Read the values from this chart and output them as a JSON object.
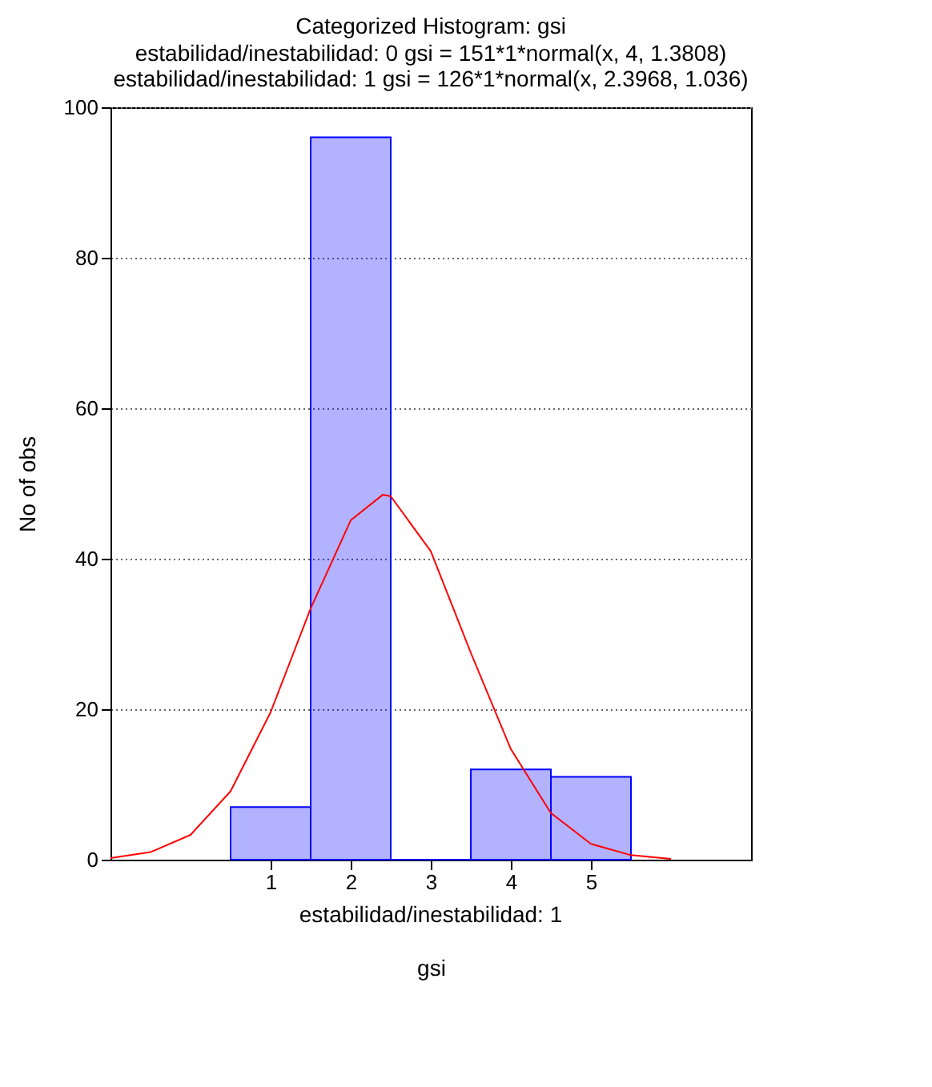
{
  "chart_data": {
    "type": "histogram",
    "title": "Categorized Histogram: gsi",
    "subtitle": [
      "estabilidad/inestabilidad: 0 gsi = 151*1*normal(x, 4, 1.3808)",
      "estabilidad/inestabilidad: 1 gsi = 126*1*normal(x, 2.3968, 1.036)"
    ],
    "xlabel": "gsi",
    "ylabel": "No of obs",
    "annotations": [
      "estabilidad/inestabilidad: 1"
    ],
    "bins": [
      0.5,
      1.5,
      2.5,
      3.5,
      4.5,
      5.5
    ],
    "values": [
      7,
      96,
      0,
      12,
      11
    ],
    "color": "#0000ff",
    "series": [
      {
        "type": "line",
        "color": "#ff0000",
        "x": [
          -1,
          -0.5,
          0,
          0.5,
          1,
          1.5,
          2,
          2.4,
          2.5,
          3,
          3.5,
          4,
          4.5,
          5,
          5.5,
          6
        ],
        "values": [
          0.2,
          1.0,
          3.3,
          9.1,
          19.6,
          33.4,
          45.1,
          48.5,
          48.3,
          41.0,
          27.5,
          14.7,
          6.2,
          2.1,
          0.6,
          0.1
        ]
      }
    ],
    "xlim": [
      -1,
      7
    ],
    "xticks": [
      1,
      2,
      3,
      4,
      5
    ],
    "ylim": [
      0,
      100
    ],
    "yticks": [
      0,
      20,
      40,
      60,
      80,
      100
    ],
    "grid": "y"
  }
}
